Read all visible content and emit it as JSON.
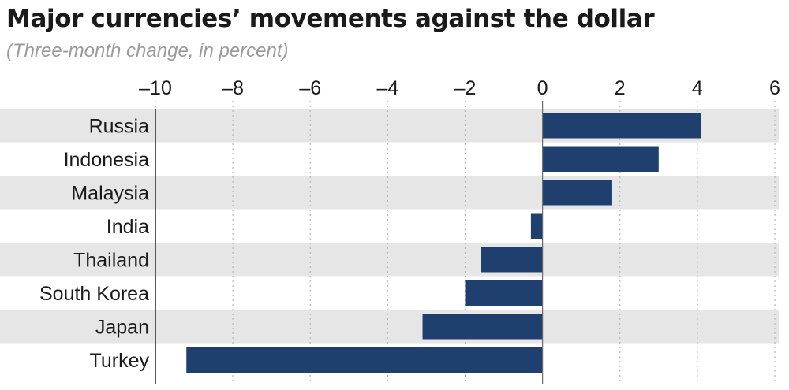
{
  "chart_data": {
    "type": "bar",
    "orientation": "horizontal",
    "title": "Major currencies’ movements against the dollar",
    "subtitle": "(Three-month change, in percent)",
    "categories": [
      "Russia",
      "Indonesia",
      "Malaysia",
      "India",
      "Thailand",
      "South Korea",
      "Japan",
      "Turkey"
    ],
    "values": [
      4.1,
      3.0,
      1.8,
      -0.3,
      -1.6,
      -2.0,
      -3.1,
      -9.2
    ],
    "xlim": [
      -10,
      6
    ],
    "xticks": [
      -10,
      -8,
      -6,
      -4,
      -2,
      0,
      2,
      4,
      6
    ],
    "xtick_labels": [
      "–10",
      "–8",
      "–6",
      "–4",
      "–2",
      "0",
      "2",
      "4",
      "6"
    ],
    "grid": true,
    "row_banding": true,
    "colors": {
      "bar": "#1f3f6e",
      "band": "#e6e6e6",
      "grid": "#b8b8b8",
      "text": "#1a1a1a",
      "subtitle": "#9a9a9a"
    }
  }
}
